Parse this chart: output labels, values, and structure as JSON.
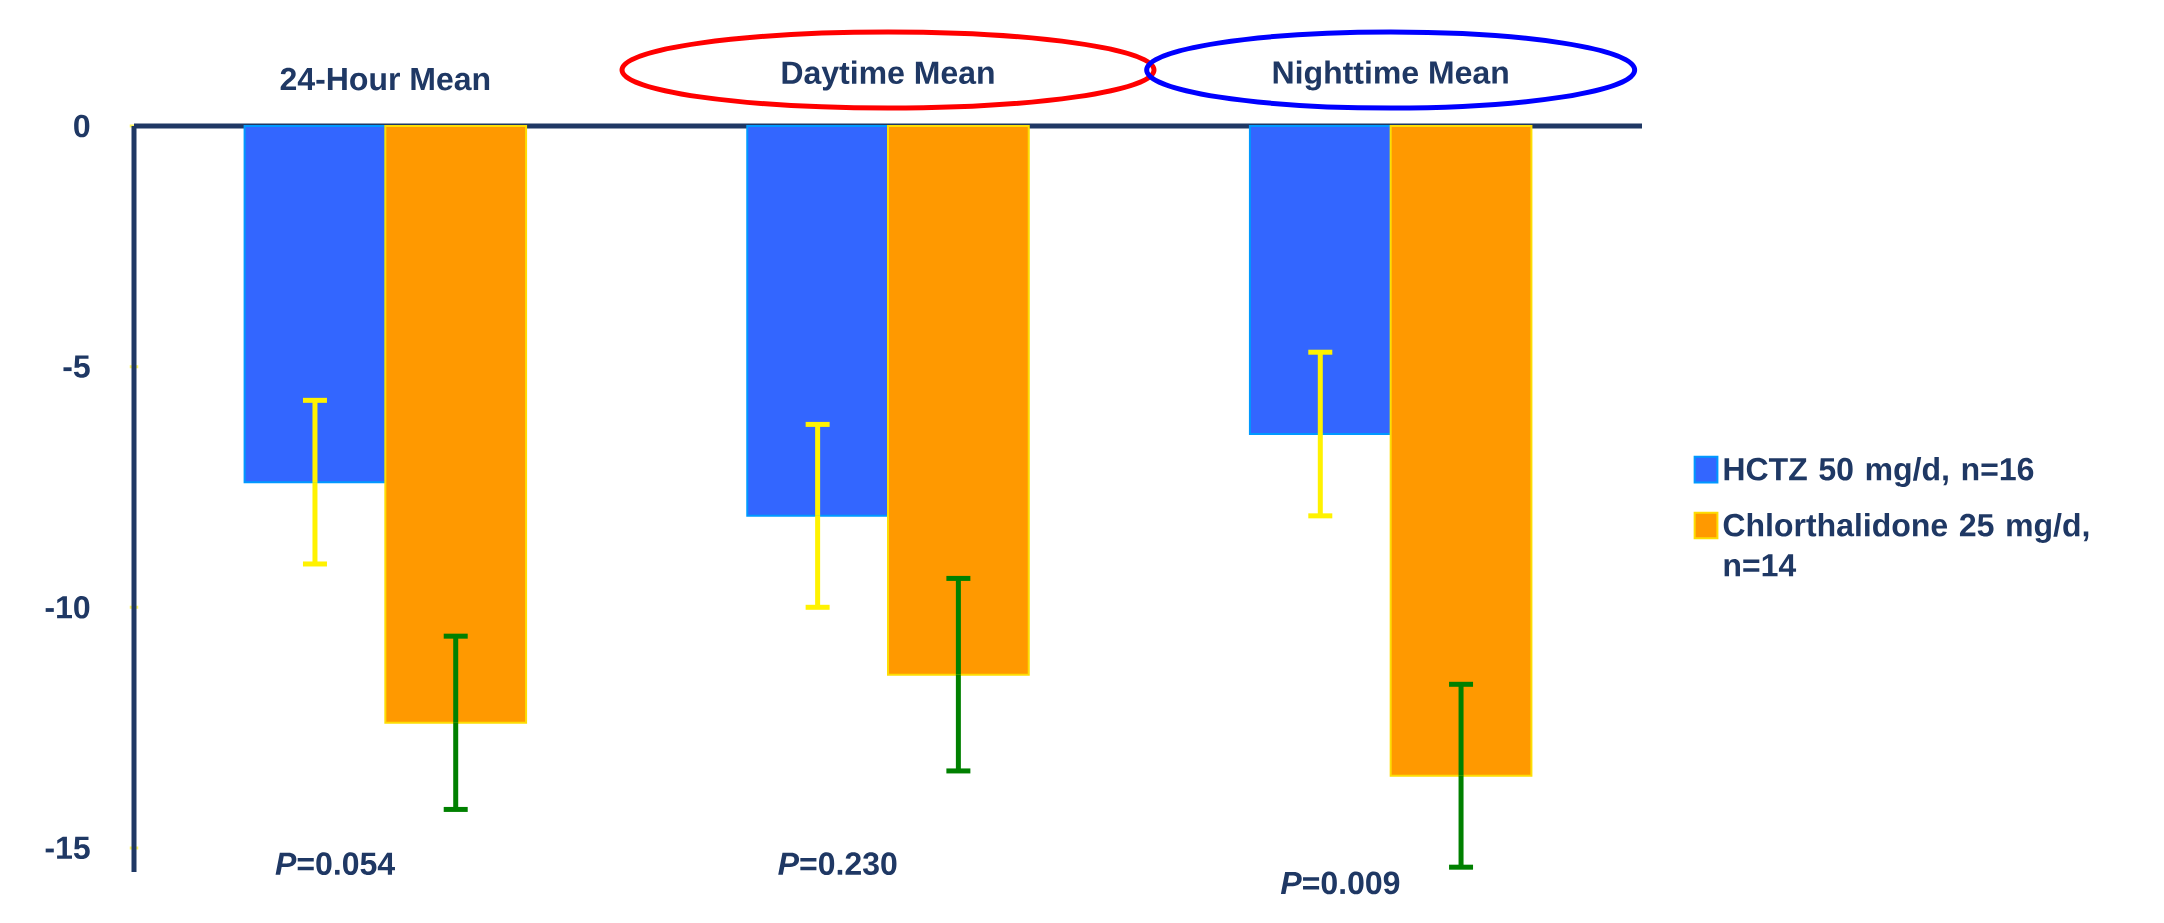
{
  "chart_data": {
    "type": "bar",
    "categories": [
      "24-Hour Mean",
      "Daytime Mean",
      "Nighttime Mean"
    ],
    "series": [
      {
        "name": "HCTZ 50 mg/d, n=16",
        "color": "#3366ff",
        "values": [
          -7.4,
          -8.1,
          -6.4
        ],
        "errors": [
          [
            -9.1,
            -5.7
          ],
          [
            -10.0,
            -6.2
          ],
          [
            -8.1,
            -4.7
          ]
        ]
      },
      {
        "name": "Chlorthalidone 25 mg/d, n=14",
        "color": "#ff9900",
        "values": [
          -12.4,
          -11.4,
          -13.5
        ],
        "errors": [
          [
            -14.2,
            -10.6
          ],
          [
            -13.4,
            -9.4
          ],
          [
            -15.4,
            -11.6
          ]
        ]
      }
    ],
    "ylim": [
      -15.5,
      0
    ],
    "yticks": [
      0,
      -5,
      -10,
      -15
    ],
    "annotations": [
      "*P*=0.054",
      "*P*=0.230",
      "*P*=0.009"
    ],
    "legend": "right",
    "grid": false
  }
}
